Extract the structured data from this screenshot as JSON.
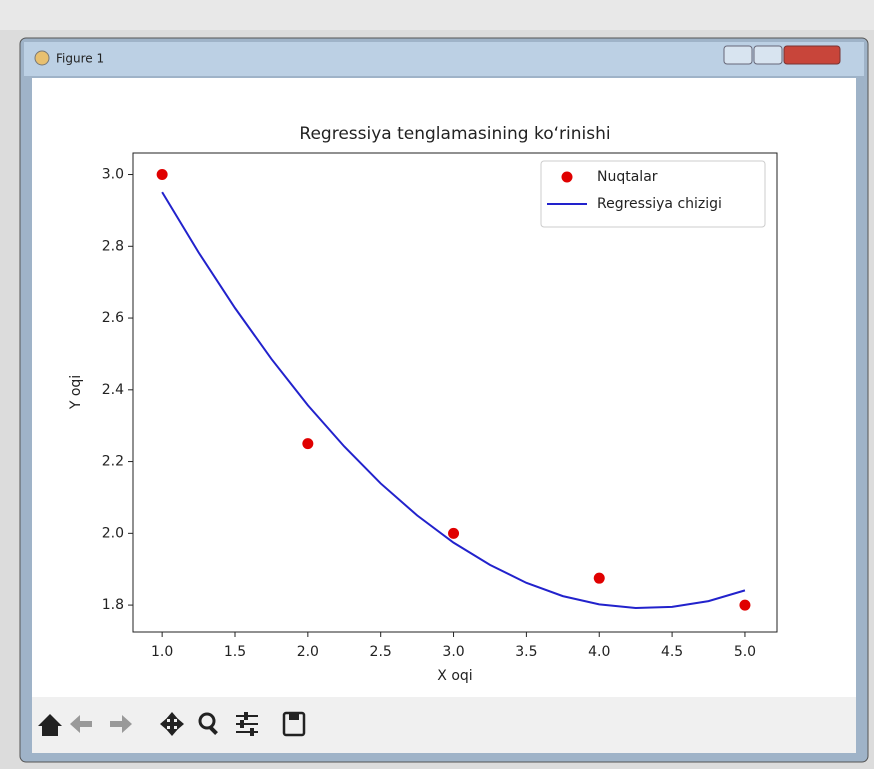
{
  "window": {
    "title": "Figure 1"
  },
  "chart_data": {
    "type": "scatter",
    "title": "Regressiya tenglamasining ko‘rinishi",
    "xlabel": "X oqi",
    "ylabel": "Y oqi",
    "series": [
      {
        "name": "Nuqtalar",
        "type": "scatter",
        "color": "#e00000",
        "x": [
          1,
          2,
          3,
          4,
          5
        ],
        "values": [
          3.0,
          2.25,
          2.0,
          1.875,
          1.8
        ]
      },
      {
        "name": "Regressiya chizigi",
        "type": "line",
        "color": "#2222cc",
        "x": [
          1,
          1.25,
          1.5,
          1.75,
          2,
          2.25,
          2.5,
          2.75,
          3,
          3.25,
          3.5,
          3.75,
          4,
          4.25,
          4.5,
          4.75,
          5
        ],
        "values": [
          2.951,
          2.783,
          2.628,
          2.486,
          2.357,
          2.242,
          2.139,
          2.05,
          1.974,
          1.912,
          1.862,
          1.825,
          1.802,
          1.792,
          1.795,
          1.811,
          1.841
        ]
      }
    ],
    "xlim": [
      0.8,
      5.22
    ],
    "ylim": [
      1.725,
      3.06
    ],
    "xticks": [
      {
        "value": 1,
        "label": "1.0"
      },
      1.5,
      {
        "value": 2,
        "label": "2.0"
      },
      2.5,
      {
        "value": 3,
        "label": "3.0"
      },
      3.5,
      {
        "value": 4,
        "label": "4.0"
      },
      4.5,
      {
        "value": 5,
        "label": "5.0"
      }
    ],
    "yticks": [
      1.8,
      {
        "value": 2,
        "label": "2.0"
      },
      2.2,
      2.4,
      2.6,
      2.8,
      {
        "value": 3,
        "label": "3.0"
      }
    ],
    "grid": false,
    "legend": "upper right"
  }
}
